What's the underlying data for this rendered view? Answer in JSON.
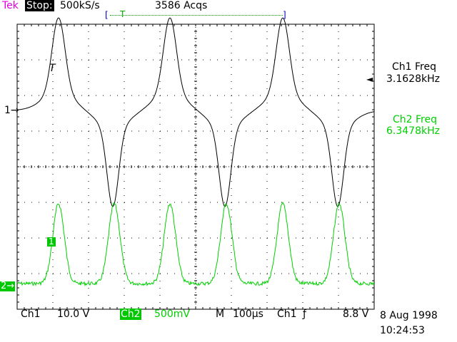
{
  "header": {
    "brand": "Tek",
    "state": "Stop:",
    "sample_rate": "500kS/s",
    "acquisitions": "3586 Acqs",
    "trigger_bracket_left": "[",
    "trigger_bracket_right": "]",
    "trigger_marker": "T"
  },
  "display": {
    "grid_divisions_x": 10,
    "grid_divisions_y": 8,
    "ch1_marker": "1→",
    "ch2_marker": "2→",
    "ch2_box_label": "1",
    "ch1_trigger_marker": "T",
    "colors": {
      "ch1": "#000000",
      "ch2": "#00d000",
      "grid": "#000000"
    }
  },
  "measurements": {
    "ch1_label": "Ch1 Freq",
    "ch1_value": "3.1628kHz",
    "ch2_label": "Ch2 Freq",
    "ch2_value": "6.3478kHz",
    "ch1_pointer": "◄"
  },
  "footer": {
    "ch1": "Ch1",
    "ch1_scale": "10.0 V",
    "ch2": "Ch2",
    "ch2_scale": "500mV",
    "m": "M",
    "time_scale": "100µs",
    "trig_source": "Ch1",
    "trig_slope": "ƒ",
    "trig_level": "8.8 V",
    "date": "8 Aug 1998",
    "time": "10:24:53"
  }
}
